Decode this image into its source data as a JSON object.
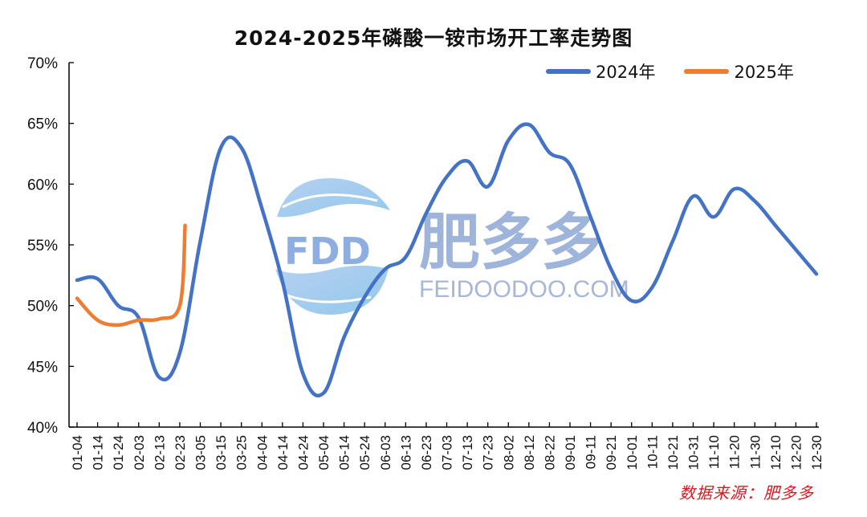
{
  "title": "2024-2025年磷酸一铵市场开工率走势图",
  "legend": [
    {
      "label": "2024年",
      "color": "#4472c4"
    },
    {
      "label": "2025年",
      "color": "#ed7d31"
    }
  ],
  "source": "数据来源：肥多多",
  "watermark": {
    "logo_text": "FDD",
    "cn_text": "肥多多",
    "en_text": "FEIDOODOO.COM"
  },
  "chart_data": {
    "type": "line",
    "title": "2024-2025年磷酸一铵市场开工率走势图",
    "xlabel": "",
    "ylabel": "",
    "ylim": [
      40,
      70
    ],
    "yticks": [
      "40%",
      "45%",
      "50%",
      "55%",
      "60%",
      "65%",
      "70%"
    ],
    "grid": false,
    "legend_position": "top-right",
    "x": [
      "01-04",
      "01-14",
      "01-24",
      "02-03",
      "02-13",
      "02-23",
      "03-05",
      "03-15",
      "03-25",
      "04-04",
      "04-14",
      "04-24",
      "05-04",
      "05-14",
      "05-24",
      "06-03",
      "06-13",
      "06-23",
      "07-03",
      "07-13",
      "07-23",
      "08-02",
      "08-12",
      "08-22",
      "09-01",
      "09-11",
      "09-21",
      "10-01",
      "10-11",
      "10-21",
      "10-31",
      "11-10",
      "11-20",
      "11-30",
      "12-10",
      "12-20",
      "12-30"
    ],
    "series": [
      {
        "name": "2024年",
        "color": "#4472c4",
        "values": [
          52.1,
          52.2,
          50.0,
          49.0,
          44.1,
          46.1,
          55.3,
          63.0,
          63.0,
          58.0,
          52.0,
          44.4,
          42.8,
          47.4,
          50.7,
          53.0,
          54.0,
          57.6,
          60.6,
          61.9,
          59.8,
          63.6,
          64.9,
          62.6,
          61.6,
          57.3,
          53.0,
          50.4,
          51.5,
          55.3,
          59.0,
          57.3,
          59.6,
          58.6,
          56.6,
          54.6,
          52.6
        ]
      },
      {
        "name": "2025年",
        "color": "#ed7d31",
        "values": [
          50.6,
          48.8,
          48.4,
          48.8,
          48.9,
          50.0,
          null,
          null,
          null,
          null,
          null,
          null,
          null,
          null,
          null,
          null,
          null,
          null,
          null,
          null,
          null,
          null,
          null,
          null,
          null,
          null,
          null,
          null,
          null,
          null,
          null,
          null,
          null,
          null,
          null,
          null,
          null
        ],
        "last_point": {
          "x": "02-26",
          "value": 56.6
        }
      }
    ]
  }
}
